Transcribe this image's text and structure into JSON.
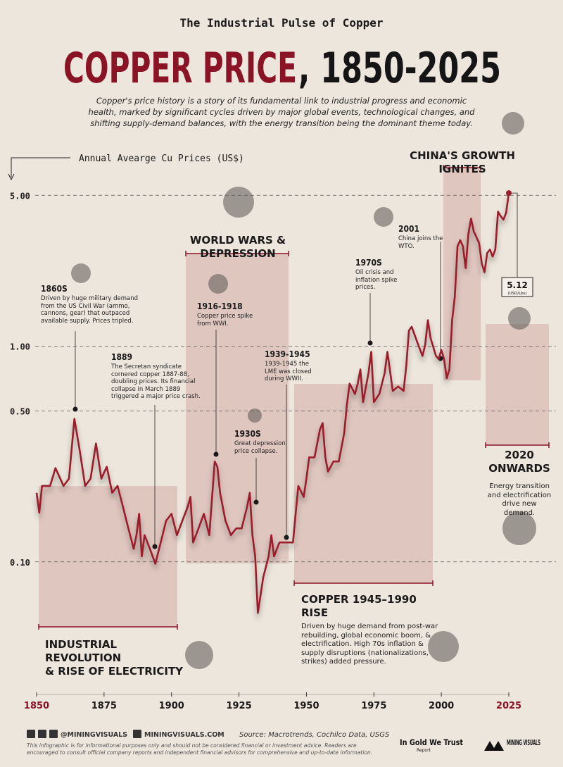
{
  "chart_data": {
    "type": "line",
    "kicker": "The Industrial Pulse of Copper",
    "title_highlight": "COPPER PRICE",
    "title_rest": ", 1850-2025",
    "subtitle": "Copper's price history is a story of its fundamental link to industrial progress and economic health, marked by significant cycles driven by major global events, technological changes, and shifting supply-demand balances, with the energy transition being the dominant theme today.",
    "y_label": "Annual Avearge Cu Prices (US$)",
    "log_scale": true,
    "color": "#9b1b2a",
    "grid": true,
    "xlim": [
      1850,
      2025
    ],
    "xticks": [
      1850,
      1875,
      1900,
      1925,
      1950,
      1975,
      2000,
      2025
    ],
    "ylim": [
      0.05,
      6
    ],
    "yticks": [
      {
        "value": 0.1,
        "label": "0.10"
      },
      {
        "value": 0.5,
        "label": "0.50"
      },
      {
        "value": 1,
        "label": "1.00"
      },
      {
        "value": 5,
        "label": "5.00"
      }
    ],
    "x": [
      1850,
      1851,
      1852,
      1855,
      1857,
      1860,
      1862,
      1864,
      1866,
      1868,
      1870,
      1872,
      1874,
      1876,
      1878,
      1880,
      1882,
      1884,
      1886,
      1887,
      1888,
      1889,
      1890,
      1892,
      1894,
      1896,
      1898,
      1900,
      1902,
      1904,
      1906,
      1907,
      1908,
      1910,
      1912,
      1914,
      1916,
      1917,
      1918,
      1920,
      1922,
      1924,
      1926,
      1928,
      1929,
      1930,
      1931,
      1932,
      1934,
      1936,
      1937,
      1938,
      1940,
      1942,
      1945,
      1946,
      1947,
      1949,
      1950,
      1951,
      1953,
      1955,
      1956,
      1957,
      1958,
      1960,
      1962,
      1964,
      1965,
      1966,
      1968,
      1969,
      1970,
      1971,
      1973,
      1974,
      1975,
      1977,
      1979,
      1980,
      1982,
      1984,
      1986,
      1987,
      1988,
      1989,
      1991,
      1993,
      1994,
      1995,
      1996,
      1998,
      1999,
      2000,
      2001,
      2002,
      2003,
      2004,
      2005,
      2006,
      2007,
      2008,
      2009,
      2010,
      2011,
      2012,
      2013,
      2014,
      2015,
      2016,
      2017,
      2018,
      2019,
      2020,
      2021,
      2022,
      2023,
      2024,
      2025
    ],
    "values": [
      0.209,
      0.169,
      0.225,
      0.225,
      0.272,
      0.225,
      0.243,
      0.46,
      0.328,
      0.225,
      0.243,
      0.354,
      0.243,
      0.276,
      0.209,
      0.225,
      0.18,
      0.143,
      0.115,
      0.133,
      0.167,
      0.106,
      0.133,
      0.115,
      0.098,
      0.123,
      0.155,
      0.167,
      0.133,
      0.155,
      0.18,
      0.2,
      0.123,
      0.143,
      0.167,
      0.133,
      0.292,
      0.276,
      0.209,
      0.155,
      0.133,
      0.143,
      0.143,
      0.18,
      0.209,
      0.133,
      0.106,
      0.058,
      0.085,
      0.106,
      0.133,
      0.106,
      0.123,
      0.123,
      0.123,
      0.167,
      0.225,
      0.2,
      0.243,
      0.305,
      0.305,
      0.41,
      0.44,
      0.305,
      0.262,
      0.292,
      0.292,
      0.395,
      0.534,
      0.67,
      0.6,
      0.67,
      0.78,
      0.55,
      0.75,
      0.94,
      0.55,
      0.6,
      0.75,
      0.94,
      0.62,
      0.65,
      0.62,
      0.81,
      1.18,
      1.23,
      1.05,
      0.9,
      1.01,
      1.32,
      1.09,
      0.9,
      0.87,
      0.96,
      0.87,
      0.71,
      0.78,
      1.32,
      1.7,
      2.9,
      3.1,
      2.9,
      2.3,
      3.3,
      3.9,
      3.4,
      3.2,
      3.0,
      2.4,
      2.2,
      2.7,
      2.8,
      2.6,
      2.8,
      4.2,
      4.0,
      3.85,
      4.15,
      5.12
    ],
    "last_value_label": "5.12",
    "last_value_unit": "(USD/Lbs)",
    "annotations": [
      {
        "heading": "1860S",
        "text": "Driven by huge military demand from the US Civil War (ammo, cannons, gear) that outpaced available supply. Prices tripled."
      },
      {
        "heading": "1889",
        "text": "The Secretan syndicate cornered copper 1887-88, doubling prices. Its financial collapse in March 1889 triggered a major price crash."
      },
      {
        "heading": "1916-1918",
        "text": "Copper price spike from WWI."
      },
      {
        "heading": "1930S",
        "text": "Great depression price collapse."
      },
      {
        "heading": "1939-1945",
        "text": "1939-1945 the LME was closed during WWII."
      },
      {
        "heading": "1970S",
        "text": "Oil crisis and inflation spike prices."
      },
      {
        "heading": "2001",
        "text": "China joins the WTO."
      }
    ],
    "eras": [
      {
        "title": [
          "INDUSTRIAL REVOLUTION",
          "& RISE OF ELECTRICITY"
        ]
      },
      {
        "title": [
          "WORLD WARS & DEPRESSION"
        ]
      },
      {
        "title": [
          "COPPER 1945–1990 RISE"
        ],
        "text": "Driven by huge demand from post-war rebuilding, global economic boom, & electrification. High 70s inflation & supply disruptions (nationalizations, strikes) added pressure."
      },
      {
        "title": [
          "CHINA'S GROWTH IGNITES"
        ]
      },
      {
        "title": [
          "2020",
          "ONWARDS"
        ],
        "text": "Energy transition and electrification drive new demand."
      }
    ],
    "footer": {
      "handle": "@MININGVISUALS",
      "website": "MININGVISUALS.COM",
      "source": "Source: Macrotrends, Cochilco Data, USGS",
      "disclaimer": "This infographic is for informational purposes only and should not be considered financial or investment advice. Readers are encouraged to consult official company reports and independent financial advisors for comprehensive and up-to-date information.",
      "partner": "In Gold We Trust",
      "partner_sub": "Report",
      "brand": "MINING VISUALS"
    }
  }
}
